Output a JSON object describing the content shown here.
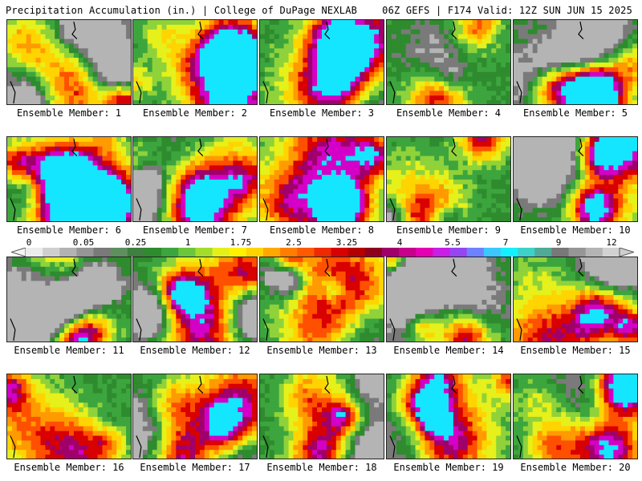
{
  "header": {
    "left": "Precipitation Accumulation (in.) | College of DuPage NEXLAB",
    "right": "06Z GEFS | F174 Valid: 12Z SUN JUN 15 2025"
  },
  "colorbar": {
    "labels": [
      "0",
      "0.05",
      "0.25",
      "1",
      "1.75",
      "2.5",
      "3.25",
      "4",
      "5.5",
      "7",
      "9",
      "12"
    ],
    "colors": [
      "#ececec",
      "#cfcfcf",
      "#b3b3b3",
      "#969696",
      "#7a7a7a",
      "#5e8f5e",
      "#3f7f3f",
      "#2e8b2e",
      "#3da53d",
      "#6cc63c",
      "#a4dc2c",
      "#e3f01a",
      "#fff200",
      "#ffd400",
      "#ffa800",
      "#ff7e00",
      "#ff5a00",
      "#f02a00",
      "#d80000",
      "#b40000",
      "#8e001e",
      "#a0006a",
      "#c8008c",
      "#e600b4",
      "#c81ee6",
      "#9646f0",
      "#6e82ff",
      "#3cc8ff",
      "#14f0ff",
      "#3cd2c8",
      "#50aa96",
      "#787878",
      "#969696",
      "#b4b4b4",
      "#d2d2d2"
    ]
  },
  "panels": [
    {
      "label": "Ensemble Member: 1"
    },
    {
      "label": "Ensemble Member: 2"
    },
    {
      "label": "Ensemble Member: 3"
    },
    {
      "label": "Ensemble Member: 4"
    },
    {
      "label": "Ensemble Member: 5"
    },
    {
      "label": "Ensemble Member: 6"
    },
    {
      "label": "Ensemble Member: 7"
    },
    {
      "label": "Ensemble Member: 8"
    },
    {
      "label": "Ensemble Member: 9"
    },
    {
      "label": "Ensemble Member: 10"
    },
    {
      "label": "Ensemble Member: 11"
    },
    {
      "label": "Ensemble Member: 12"
    },
    {
      "label": "Ensemble Member: 13"
    },
    {
      "label": "Ensemble Member: 14"
    },
    {
      "label": "Ensemble Member: 15"
    },
    {
      "label": "Ensemble Member: 16"
    },
    {
      "label": "Ensemble Member: 17"
    },
    {
      "label": "Ensemble Member: 18"
    },
    {
      "label": "Ensemble Member: 19"
    },
    {
      "label": "Ensemble Member: 20"
    }
  ]
}
